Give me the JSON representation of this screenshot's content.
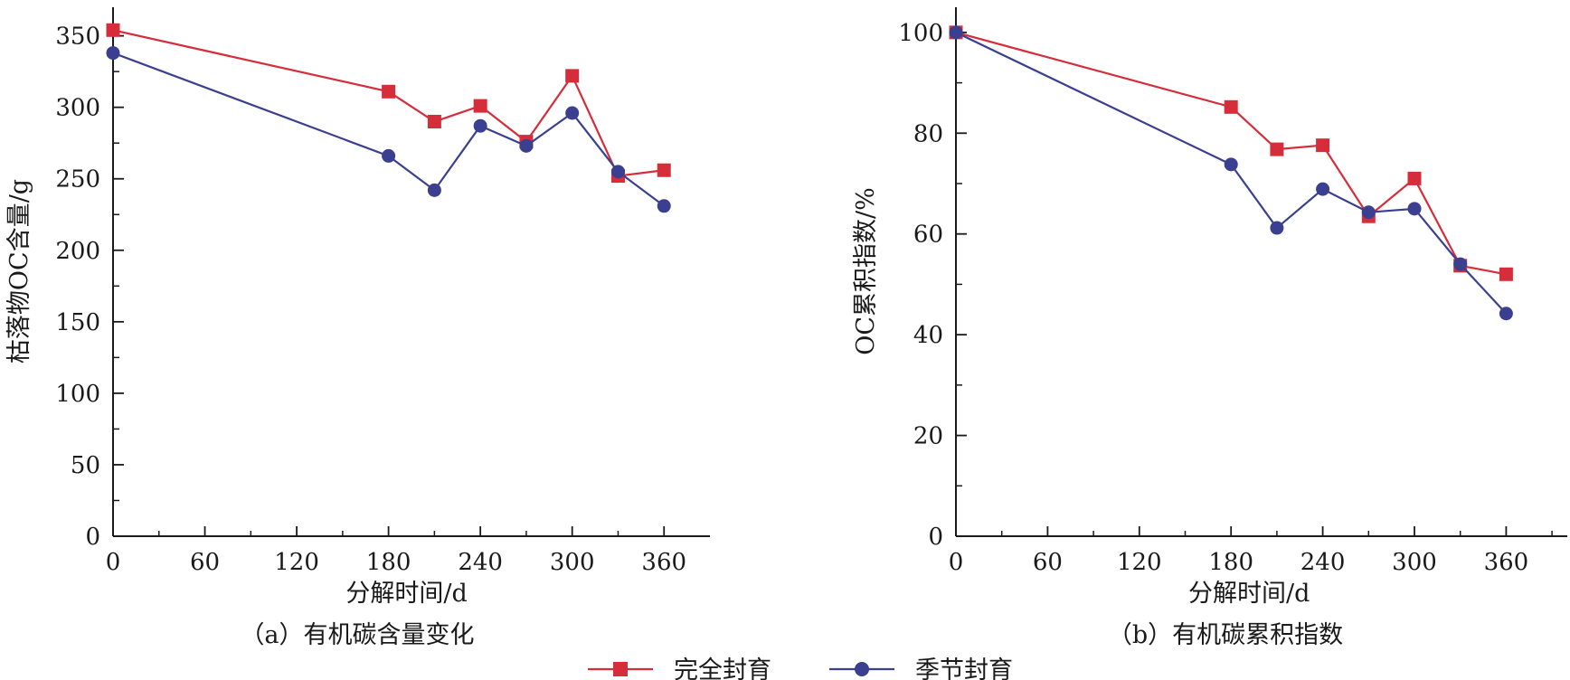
{
  "chart_data": [
    {
      "type": "line",
      "caption": "（a）有机碳含量变化",
      "xlabel": "分解时间/d",
      "ylabel": "枯落物OC含量/g",
      "xlim": [
        0,
        390
      ],
      "ylim": [
        0,
        370
      ],
      "xticks": [
        0,
        60,
        120,
        180,
        240,
        300,
        360
      ],
      "yticks": [
        0,
        50,
        100,
        150,
        200,
        250,
        300,
        350
      ],
      "series": [
        {
          "name": "完全封育",
          "marker": "square",
          "x": [
            0,
            180,
            210,
            240,
            270,
            300,
            330,
            360
          ],
          "y": [
            354,
            311,
            290,
            301,
            276,
            322,
            252,
            256
          ]
        },
        {
          "name": "季节封育",
          "marker": "circle",
          "x": [
            0,
            180,
            210,
            240,
            270,
            300,
            330,
            360
          ],
          "y": [
            338,
            266,
            242,
            287,
            273,
            296,
            255,
            231
          ]
        }
      ]
    },
    {
      "type": "line",
      "caption": "（b）有机碳累积指数",
      "xlabel": "分解时间/d",
      "ylabel": "OC累积指数/%",
      "xlim": [
        0,
        400
      ],
      "ylim": [
        0,
        105
      ],
      "xticks": [
        0,
        60,
        120,
        180,
        240,
        300,
        360
      ],
      "yticks": [
        0,
        20,
        40,
        60,
        80,
        100
      ],
      "series": [
        {
          "name": "完全封育",
          "marker": "square",
          "x": [
            0,
            180,
            210,
            240,
            270,
            300,
            330,
            360
          ],
          "y": [
            100,
            85.2,
            76.8,
            77.6,
            63.5,
            71.0,
            53.7,
            52.0
          ]
        },
        {
          "name": "季节封育",
          "marker": "circle",
          "x": [
            0,
            180,
            210,
            240,
            270,
            300,
            330,
            360
          ],
          "y": [
            100,
            73.8,
            61.2,
            68.9,
            64.3,
            65.0,
            54.0,
            44.2
          ]
        }
      ]
    }
  ],
  "legend": [
    {
      "label": "完全封育",
      "color": "#d62d3a",
      "marker": "square"
    },
    {
      "label": "季节封育",
      "color": "#3a3f8f",
      "marker": "circle"
    }
  ],
  "colors": {
    "series_1": "#d62d3a",
    "series_2": "#3a3f8f",
    "axis": "#1a1a1a"
  }
}
